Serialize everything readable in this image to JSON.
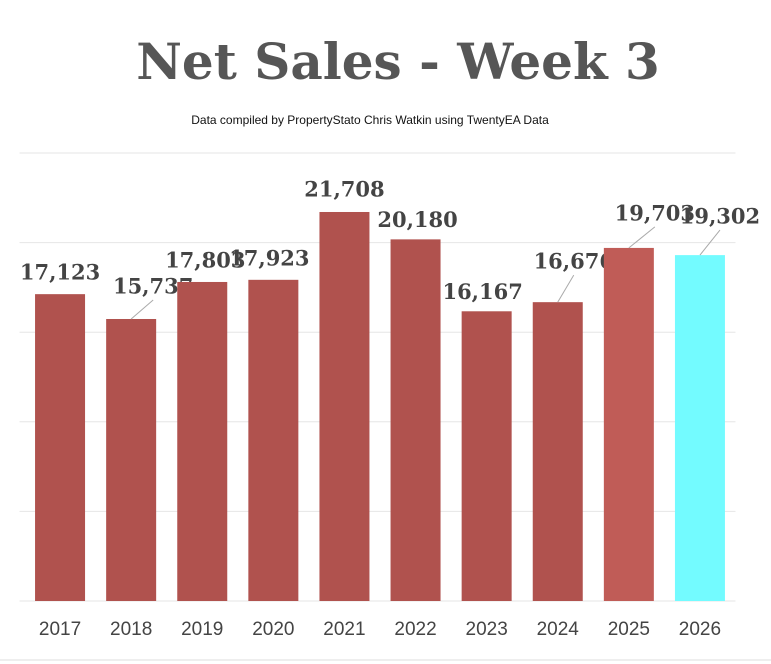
{
  "chart_data": {
    "type": "bar",
    "title": "Net Sales - Week 3",
    "subtitle": "Data compiled by PropertyStato Chris Watkin using TwentyEA Data",
    "categories": [
      "2017",
      "2018",
      "2019",
      "2020",
      "2021",
      "2022",
      "2023",
      "2024",
      "2025",
      "2026"
    ],
    "values": [
      17123,
      15737,
      17803,
      17923,
      21708,
      20180,
      16167,
      16676,
      19703,
      19302
    ],
    "value_labels": [
      "17,123",
      "15,737",
      "17,803",
      "17,923",
      "21,708",
      "20,180",
      "16,167",
      "16,676",
      "19,703",
      "19,302"
    ],
    "colors": [
      "#b0524e",
      "#b0524e",
      "#b0524e",
      "#b0524e",
      "#b0524e",
      "#b0524e",
      "#b0524e",
      "#b0524e",
      "#c05c57",
      "#73fbff"
    ],
    "ylim": [
      0,
      25000
    ],
    "yticks": [
      0,
      5000,
      10000,
      15000,
      20000,
      25000
    ],
    "grid": true
  }
}
